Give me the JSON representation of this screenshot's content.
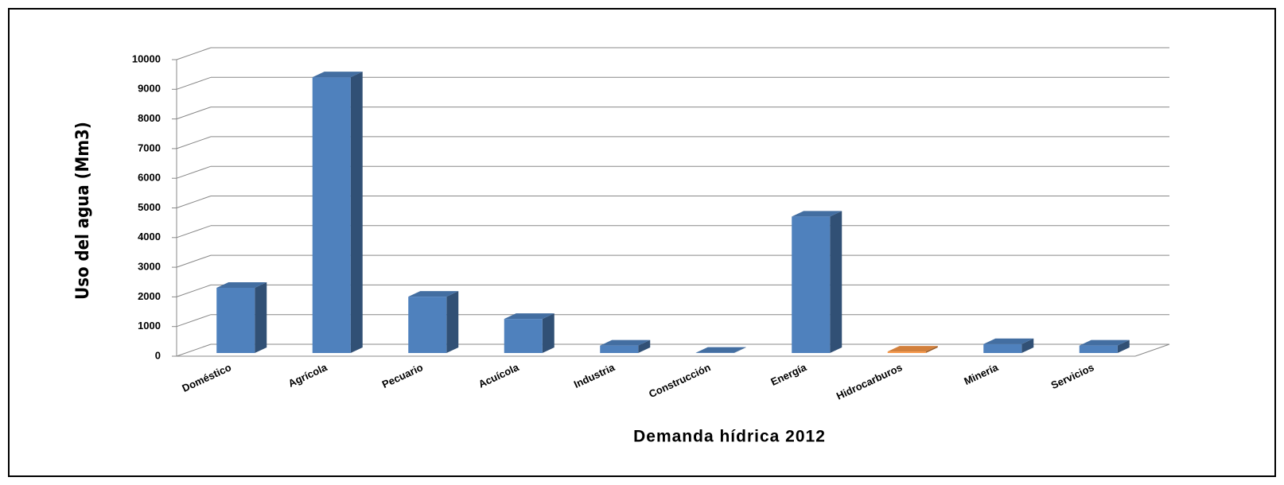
{
  "chart_data": {
    "type": "bar3d",
    "xlabel": "Demanda hídrica  2012",
    "ylabel": "Uso del agua  (Mm3)",
    "categories": [
      "Doméstico",
      "Agrícola",
      "Pecuario",
      "Acuícola",
      "Industria",
      "Construcción",
      "Energía",
      "Hidrocarburos",
      "Minería",
      "Servicios"
    ],
    "values": [
      2200,
      9300,
      1900,
      1150,
      250,
      10,
      4600,
      50,
      300,
      250
    ],
    "colors": [
      "#4f81bd",
      "#4f81bd",
      "#4f81bd",
      "#4f81bd",
      "#4f81bd",
      "#4f81bd",
      "#4f81bd",
      "#f79646",
      "#4f81bd",
      "#4f81bd"
    ],
    "ylim": [
      0,
      10000
    ],
    "yticks": [
      0,
      1000,
      2000,
      3000,
      4000,
      5000,
      6000,
      7000,
      8000,
      9000,
      10000
    ],
    "grid": true
  }
}
